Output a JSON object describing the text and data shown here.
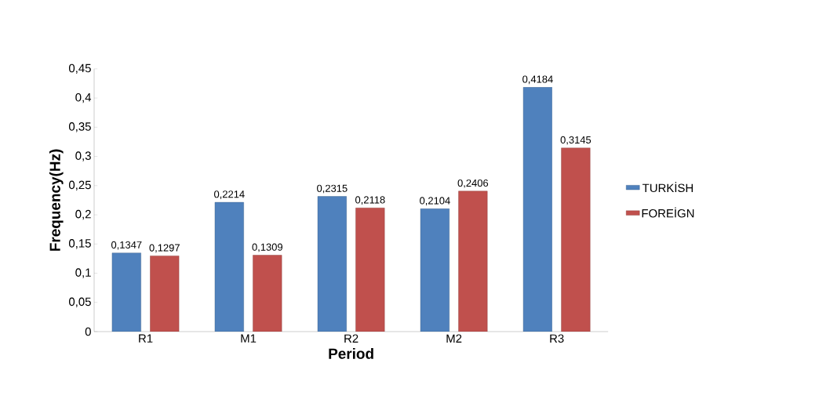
{
  "chart_data": {
    "type": "bar",
    "xlabel": "Period",
    "ylabel": "Frequency(Hz)",
    "categories": [
      "R1",
      "M1",
      "R2",
      "M2",
      "R3"
    ],
    "series": [
      {
        "name": "TURKİSH",
        "color": "#4f81bd",
        "values": [
          0.1347,
          0.2214,
          0.2315,
          0.2104,
          0.4184
        ],
        "value_labels": [
          "0,1347",
          "0,2214",
          "0,2315",
          "0,2104",
          "0,4184"
        ]
      },
      {
        "name": "FOREİGN",
        "color": "#c0504d",
        "values": [
          0.1297,
          0.1309,
          0.2118,
          0.2406,
          0.3145
        ],
        "value_labels": [
          "0,1297",
          "0,1309",
          "0,2118",
          "0,2406",
          "0,3145"
        ]
      }
    ],
    "ylim": [
      0,
      0.45
    ],
    "yticks": [
      0,
      {
        "value": 0.05,
        "label": "0,05"
      },
      {
        "value": 0.1,
        "label": "0,1"
      },
      {
        "value": 0.15,
        "label": "0,15"
      },
      {
        "value": 0.2,
        "label": "0,2"
      },
      {
        "value": 0.25,
        "label": "0,25"
      },
      {
        "value": 0.3,
        "label": "0,3"
      },
      {
        "value": 0.35,
        "label": "0,35"
      },
      {
        "value": 0.4,
        "label": "0,4"
      },
      {
        "value": 0.45,
        "label": "0,45"
      }
    ],
    "legend": "right"
  }
}
